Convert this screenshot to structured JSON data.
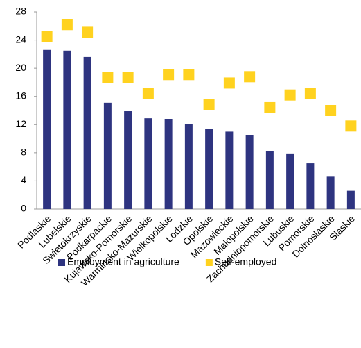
{
  "chart_data": {
    "type": "bar",
    "categories": [
      "Podlaskie",
      "Lubelskie",
      "Swietokrzyskie",
      "Podkarpackie",
      "Kujawsko-Pomorskie",
      "Warminsko-Mazurskie",
      "Wielkopolskie",
      "Lodzkie",
      "Opolskie",
      "Mazowieckie",
      "Malopolskie",
      "Zachodniopomorskie",
      "Lubuskie",
      "Pomorskie",
      "Dolnoslaskie",
      "Slaskie"
    ],
    "series": [
      {
        "name": "Employment in agriculture",
        "type": "bar",
        "color": "#2e3480",
        "values": [
          22.6,
          22.5,
          21.6,
          15.1,
          13.9,
          12.9,
          12.8,
          12.1,
          11.4,
          11.0,
          10.5,
          8.2,
          7.9,
          6.5,
          4.6,
          2.6
        ]
      },
      {
        "name": "Self-employed",
        "type": "scatter",
        "color": "#ffd21f",
        "values": [
          24.5,
          26.2,
          25.1,
          18.7,
          18.7,
          16.4,
          19.1,
          19.1,
          14.8,
          17.9,
          18.8,
          14.4,
          16.2,
          16.4,
          14.0,
          11.8
        ]
      }
    ],
    "ylim": [
      0,
      28
    ],
    "yticks": [
      0,
      4,
      8,
      12,
      16,
      20,
      24,
      28
    ],
    "legend": "bottom"
  }
}
